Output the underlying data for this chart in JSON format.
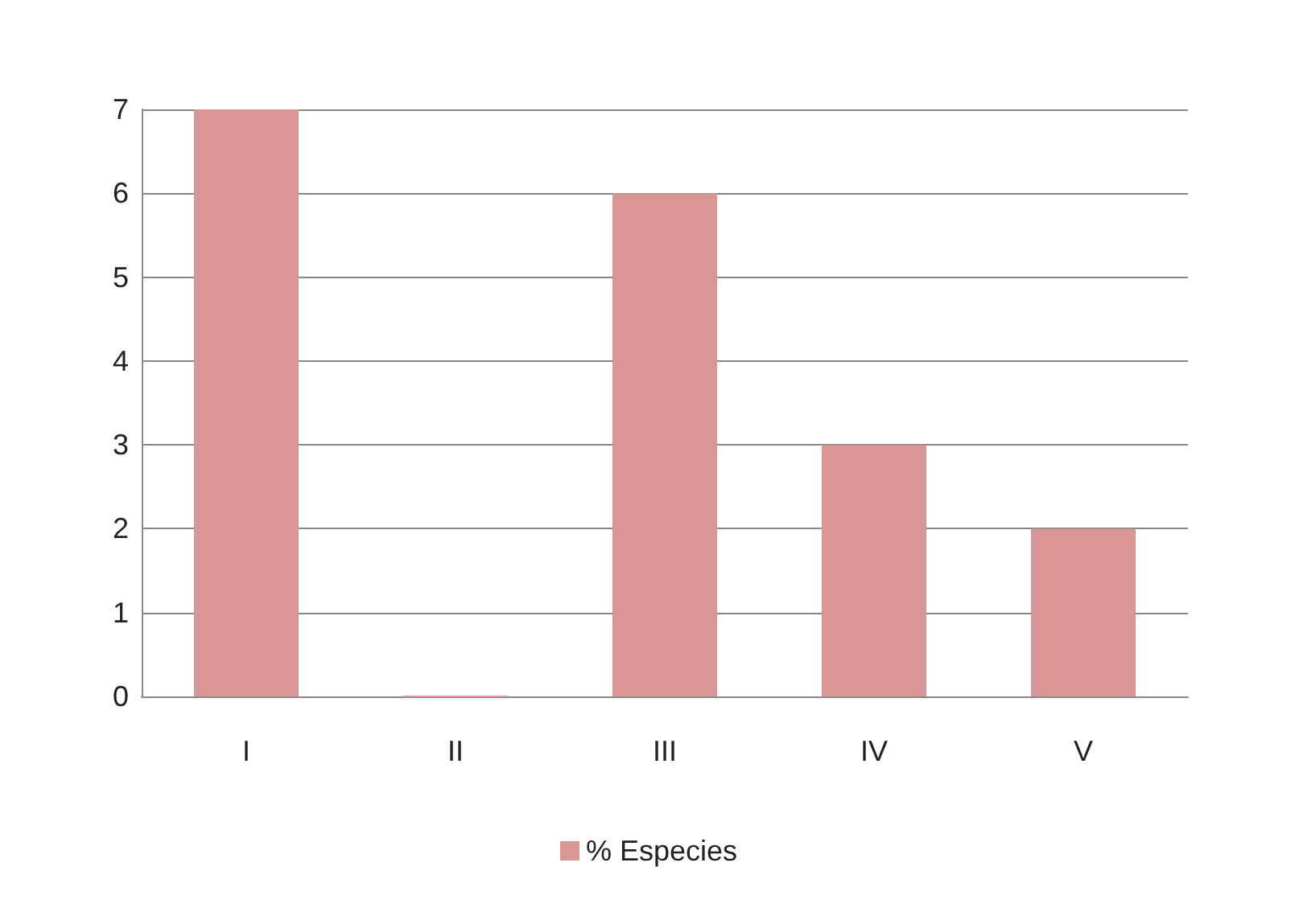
{
  "chart_data": {
    "type": "bar",
    "categories": [
      "I",
      "II",
      "III",
      "IV",
      "V"
    ],
    "series": [
      {
        "name": "% Especies",
        "color": "#d99694",
        "values": [
          7,
          0,
          6,
          3,
          2
        ]
      }
    ],
    "ylim": [
      0,
      7
    ],
    "yticks": [
      0,
      1,
      2,
      3,
      4,
      5,
      6,
      7
    ],
    "grid": "y",
    "legend": "bottom"
  }
}
